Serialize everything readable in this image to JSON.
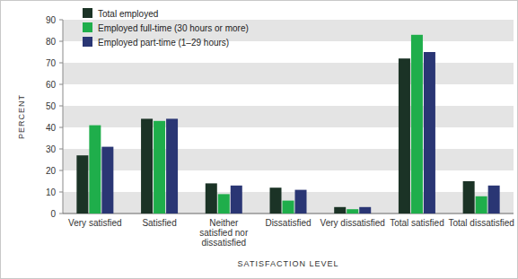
{
  "chart_data": {
    "type": "bar",
    "categories": [
      "Very satisfied",
      "Satisfied",
      "Neither satisfied nor dissatisfied",
      "Dissatisfied",
      "Very dissatisfied",
      "Total satisfied",
      "Total dissatisfied"
    ],
    "series": [
      {
        "name": "Total employed",
        "color": "#1b3326",
        "values": [
          27,
          44,
          14,
          12,
          3,
          72,
          15
        ]
      },
      {
        "name": "Employed full-time (30 hours or more)",
        "color": "#1fae4b",
        "values": [
          41,
          43,
          9,
          6,
          2,
          83,
          8
        ]
      },
      {
        "name": "Employed part-time (1–29 hours)",
        "color": "#2a3674",
        "values": [
          31,
          44,
          13,
          11,
          3,
          75,
          13
        ]
      }
    ],
    "x_label": "SATISFACTION LEVEL",
    "y_label": "PERCENT",
    "ylim": [
      0,
      90
    ],
    "yticks": [
      0,
      10,
      20,
      30,
      40,
      50,
      60,
      70,
      80,
      90
    ],
    "grid": true,
    "legend": "top-left"
  }
}
